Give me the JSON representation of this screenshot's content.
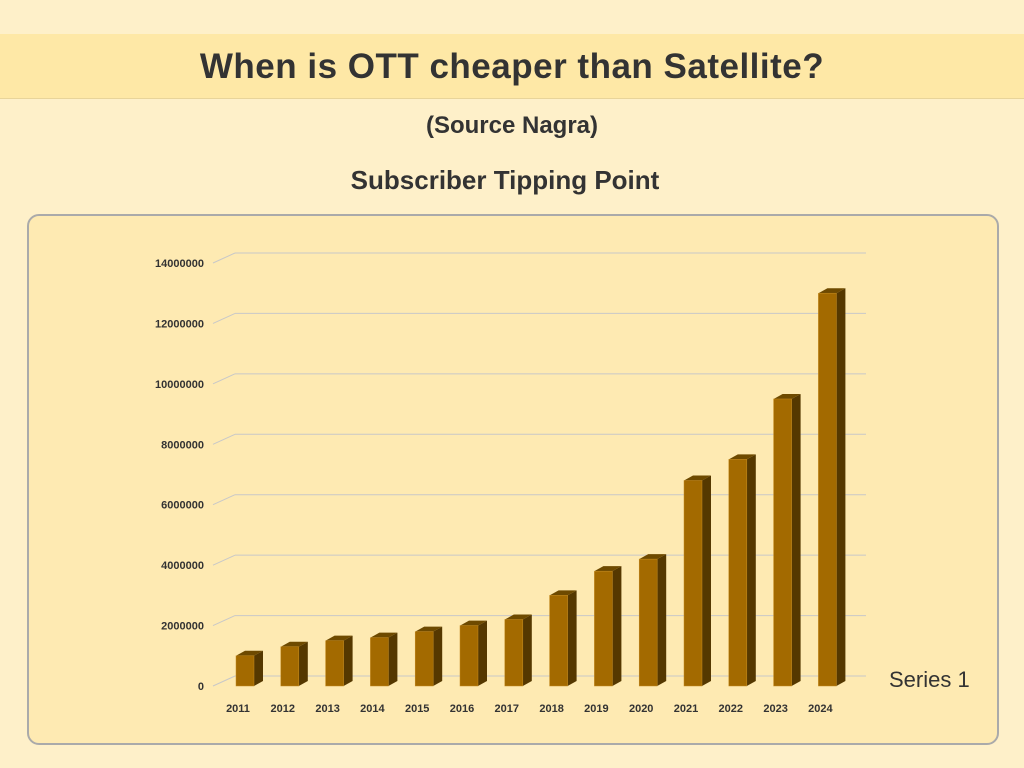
{
  "slide": {
    "title": "When is OTT cheaper than Satellite?",
    "subtitle": "(Source Nagra)"
  },
  "chart_data": {
    "type": "bar",
    "title": "Subscriber Tipping Point",
    "categories": [
      "2011",
      "2012",
      "2013",
      "2014",
      "2015",
      "2016",
      "2017",
      "2018",
      "2019",
      "2020",
      "2021",
      "2022",
      "2023",
      "2024"
    ],
    "series": [
      {
        "name": "Series 1",
        "values": [
          1000000,
          1300000,
          1500000,
          1600000,
          1800000,
          2000000,
          2200000,
          3000000,
          3800000,
          4200000,
          6800000,
          7500000,
          9500000,
          13000000
        ]
      }
    ],
    "ylim": [
      0,
      14000000
    ],
    "yticks": [
      "0",
      "2000000",
      "4000000",
      "6000000",
      "8000000",
      "10000000",
      "12000000",
      "14000000"
    ],
    "xlabel": "",
    "ylabel": "",
    "grid": true,
    "legend": "right",
    "colors": {
      "front": "#a36a00",
      "side": "#553800",
      "top": "#6e4a00",
      "grid": "#c8c8c8"
    }
  }
}
